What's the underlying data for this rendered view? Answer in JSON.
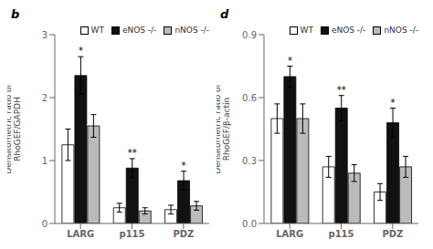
{
  "chart_data": [
    {
      "type": "bar",
      "title": "b",
      "categories": [
        "LARG",
        "p115",
        "PDZ"
      ],
      "series": [
        {
          "name": "WT",
          "color": "#ffffff",
          "values": [
            1.25,
            0.25,
            0.22
          ],
          "errors": [
            0.25,
            0.07,
            0.07
          ]
        },
        {
          "name": "eNOS -/-",
          "color": "#111111",
          "values": [
            2.35,
            0.88,
            0.68
          ],
          "errors": [
            0.3,
            0.15,
            0.15
          ],
          "labels": [
            "*",
            "**",
            "*"
          ]
        },
        {
          "name": "nNOS -/-",
          "color": "#bbbbbb",
          "values": [
            1.55,
            0.2,
            0.28
          ],
          "errors": [
            0.18,
            0.05,
            0.07
          ]
        }
      ],
      "ylabel": "Densitometric ratio of\nRhoGEF/GAPDH",
      "ylim": [
        0,
        3.0
      ],
      "yticks": [
        0,
        1,
        2,
        3
      ],
      "legend": "upper right"
    },
    {
      "type": "bar",
      "title": "d",
      "categories": [
        "LARG",
        "p115",
        "PDZ"
      ],
      "series": [
        {
          "name": "WT",
          "color": "#ffffff",
          "values": [
            0.5,
            0.27,
            0.15
          ],
          "errors": [
            0.07,
            0.05,
            0.04
          ]
        },
        {
          "name": "eNOS -/-",
          "color": "#111111",
          "values": [
            0.7,
            0.55,
            0.48
          ],
          "errors": [
            0.05,
            0.06,
            0.07
          ],
          "labels": [
            "*",
            "**",
            "*"
          ]
        },
        {
          "name": "nNOS -/-",
          "color": "#bbbbbb",
          "values": [
            0.5,
            0.24,
            0.27
          ],
          "errors": [
            0.07,
            0.04,
            0.05
          ]
        }
      ],
      "ylabel": "Densitometric ratio of\nRhoGEF/β-actin",
      "ylim": [
        0,
        0.9
      ],
      "yticks": [
        {
          "value": 0.0,
          "label": "0.0"
        },
        {
          "value": 0.3,
          "label": "0.3"
        },
        {
          "value": 0.6,
          "label": "0.6"
        },
        {
          "value": 0.9,
          "label": "0.9"
        }
      ],
      "legend": "upper right"
    }
  ]
}
